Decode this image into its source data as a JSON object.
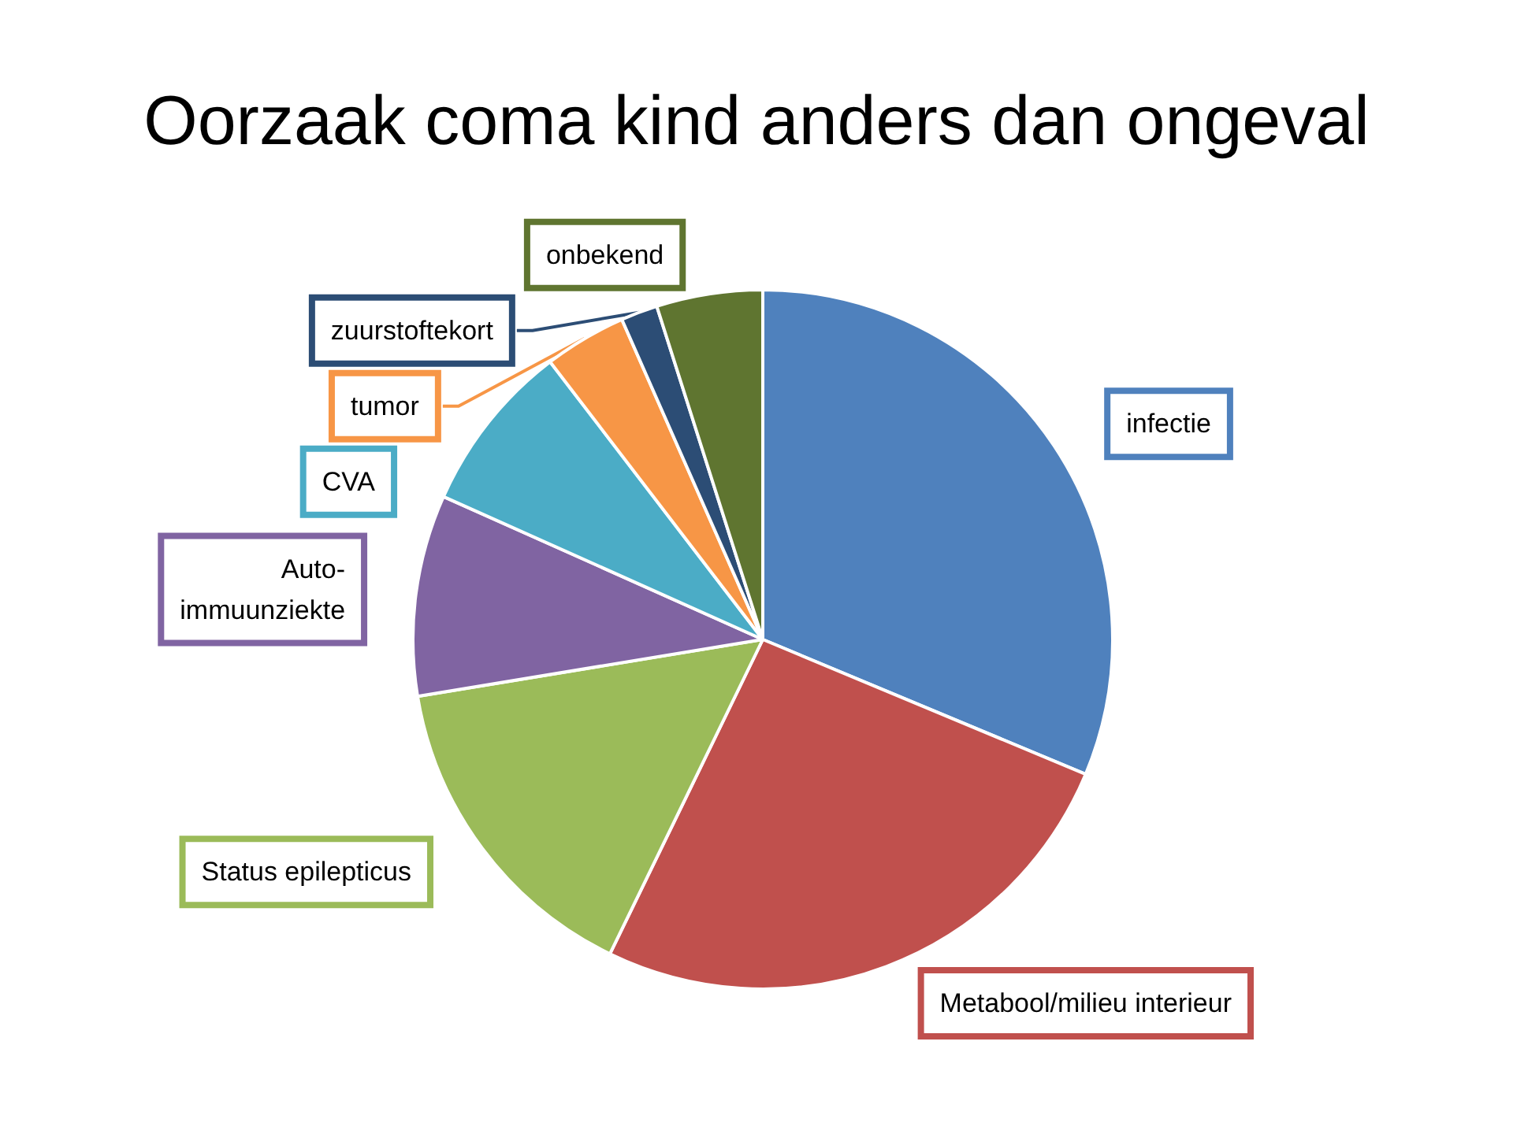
{
  "chart_data": {
    "type": "pie",
    "title": "Oorzaak coma kind anders dan ongeval",
    "categories": [
      "infectie",
      "Metabool/milieu interieur",
      "Status epilepticus",
      "Auto-\nimmuunziekte",
      "CVA",
      "tumor",
      "zuurstoftekort",
      "onbekend"
    ],
    "values": [
      31.3,
      25.9,
      15.2,
      9.3,
      7.9,
      3.8,
      1.7,
      4.9
    ],
    "colors": [
      "#4f81bd",
      "#c0504d",
      "#9bbb59",
      "#8064a2",
      "#4bacc6",
      "#f79646",
      "#2c4d75",
      "#5f7530"
    ],
    "legend": false
  }
}
